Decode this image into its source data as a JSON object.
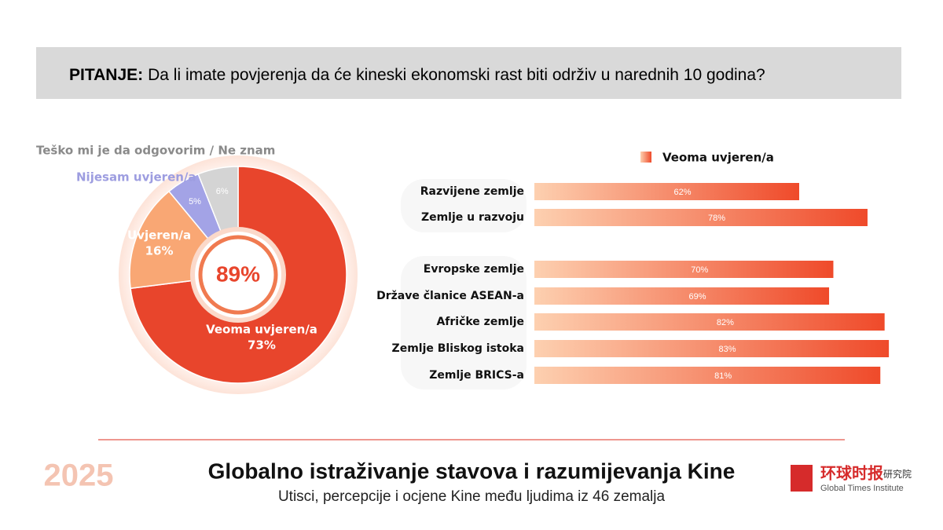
{
  "header": {
    "label": "PITANJE:",
    "question": "Da li imate povjerenja da će kineski ekonomski rast biti održiv u narednih 10 godina?"
  },
  "chart_data": [
    {
      "type": "pie",
      "categories": [
        "Veoma uvjeren/a",
        "Uvjeren/a",
        "Nijesam uvjeren/a",
        "Teško mi je da odgovorim / Ne znam"
      ],
      "values": [
        73,
        16,
        5,
        6
      ],
      "value_labels": [
        "73%",
        "16%",
        "5%",
        "6%"
      ],
      "colors": [
        "#e8452c",
        "#f9a774",
        "#a3a3e6",
        "#d4d4d4"
      ],
      "center_label": "89%"
    },
    {
      "type": "bar",
      "orientation": "horizontal",
      "categories": [
        "Razvijene zemlje",
        "Zemlje u razvoju",
        "Evropske zemlje",
        "Države članice ASEAN-a",
        "Afričke zemlje",
        "Zemlje Bliskog istoka",
        "Zemlje BRICS-a"
      ],
      "series": [
        {
          "name": "Veoma uvjeren/a",
          "color": "#ef4a2a",
          "values": [
            62,
            78,
            70,
            69,
            82,
            83,
            81
          ],
          "value_labels": [
            "62%",
            "78%",
            "70%",
            "69%",
            "82%",
            "83%",
            "81%"
          ]
        }
      ],
      "xlim": [
        0,
        85
      ],
      "legend": "top"
    }
  ],
  "footer": {
    "logo": "2025",
    "title": "Globalno istraživanje stavova i razumijevanja Kine",
    "subtitle": "Utisci, percepcije i ocjene Kine među ljudima iz 46 zemalja",
    "brand": "环球时报",
    "brand_suffix": "研究院",
    "brand_en": "Global Times Institute"
  }
}
